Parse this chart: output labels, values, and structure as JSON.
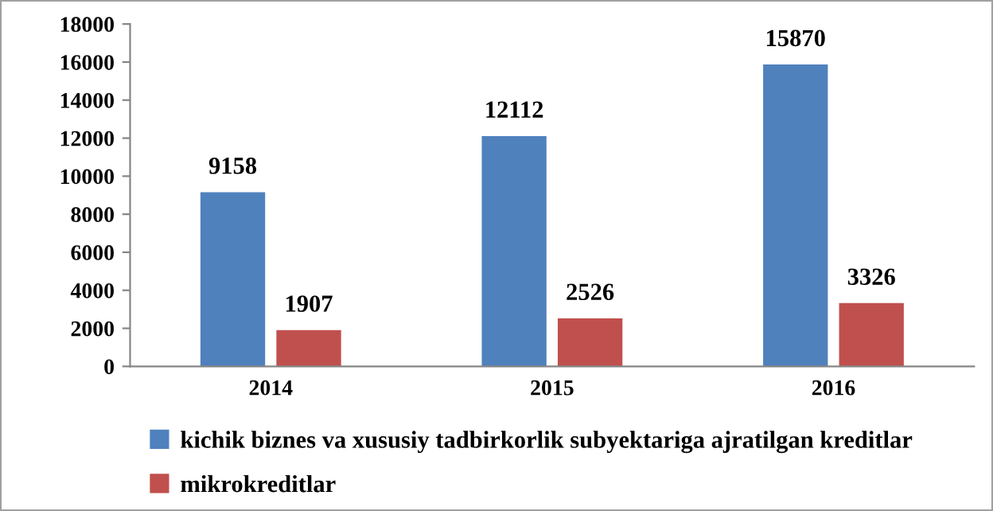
{
  "chart_data": {
    "type": "bar",
    "categories": [
      "2014",
      "2015",
      "2016"
    ],
    "series": [
      {
        "name": "kichik biznes va xususiy tadbirkorlik subyektariga ajratilgan kreditlar",
        "color": "#4f81bd",
        "values": [
          9158,
          12112,
          15870
        ]
      },
      {
        "name": "mikrokreditlar",
        "color": "#c0504d",
        "values": [
          1907,
          2526,
          3326
        ]
      }
    ],
    "ylim": [
      0,
      18000
    ],
    "yticks": [
      0,
      2000,
      4000,
      6000,
      8000,
      10000,
      12000,
      14000,
      16000,
      18000
    ],
    "data_labels": true,
    "grid": false,
    "legend": "bottom"
  }
}
